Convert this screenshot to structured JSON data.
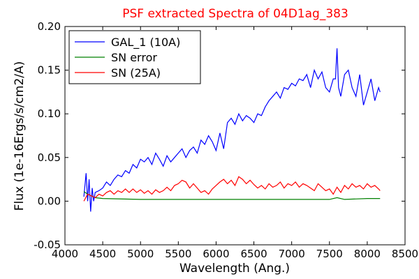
{
  "chart_data": {
    "type": "line",
    "title": "PSF extracted Spectra of 04D1ag_383",
    "title_color": "#ff0000",
    "xlabel": "Wavelength (Ang.)",
    "ylabel": "Flux (1e-16Ergs/s/cm2/A)",
    "xlim": [
      4000,
      8500
    ],
    "ylim": [
      -0.05,
      0.2
    ],
    "x_ticks": [
      4000,
      4500,
      5000,
      5500,
      6000,
      6500,
      7000,
      7500,
      8000,
      8500
    ],
    "x_tick_labels": [
      "4000",
      "4500",
      "5000",
      "5500",
      "6000",
      "6500",
      "7000",
      "7500",
      "8000",
      "8500"
    ],
    "y_ticks": [
      -0.05,
      0.0,
      0.05,
      0.1,
      0.15,
      0.2
    ],
    "y_tick_labels": [
      "-0.05",
      "0.00",
      "0.05",
      "0.10",
      "0.15",
      "0.20"
    ],
    "grid": false,
    "legend_position": "top-left",
    "series": [
      {
        "name": "GAL_1 (10A)",
        "color": "#0000ff",
        "x": [
          4250,
          4280,
          4300,
          4320,
          4340,
          4360,
          4380,
          4400,
          4450,
          4500,
          4550,
          4600,
          4650,
          4700,
          4750,
          4800,
          4850,
          4900,
          4950,
          5000,
          5050,
          5100,
          5150,
          5200,
          5250,
          5300,
          5350,
          5400,
          5450,
          5500,
          5550,
          5600,
          5650,
          5700,
          5750,
          5800,
          5850,
          5900,
          5950,
          6000,
          6050,
          6100,
          6150,
          6200,
          6250,
          6300,
          6350,
          6400,
          6450,
          6500,
          6550,
          6600,
          6650,
          6700,
          6750,
          6800,
          6850,
          6900,
          6950,
          7000,
          7050,
          7100,
          7150,
          7200,
          7250,
          7300,
          7350,
          7400,
          7450,
          7500,
          7550,
          7580,
          7600,
          7620,
          7650,
          7700,
          7750,
          7800,
          7850,
          7900,
          7950,
          8000,
          8050,
          8100,
          8150,
          8170
        ],
        "y": [
          0.005,
          0.032,
          0.0,
          0.025,
          -0.012,
          0.015,
          0.0,
          0.01,
          0.012,
          0.015,
          0.022,
          0.018,
          0.025,
          0.03,
          0.028,
          0.035,
          0.032,
          0.042,
          0.038,
          0.048,
          0.045,
          0.05,
          0.042,
          0.055,
          0.048,
          0.04,
          0.052,
          0.045,
          0.05,
          0.055,
          0.06,
          0.05,
          0.058,
          0.062,
          0.055,
          0.07,
          0.065,
          0.075,
          0.068,
          0.058,
          0.078,
          0.06,
          0.09,
          0.095,
          0.088,
          0.1,
          0.092,
          0.098,
          0.095,
          0.09,
          0.1,
          0.098,
          0.108,
          0.115,
          0.12,
          0.125,
          0.118,
          0.13,
          0.128,
          0.135,
          0.132,
          0.14,
          0.138,
          0.145,
          0.13,
          0.15,
          0.14,
          0.148,
          0.13,
          0.125,
          0.14,
          0.14,
          0.175,
          0.13,
          0.12,
          0.145,
          0.15,
          0.13,
          0.12,
          0.145,
          0.11,
          0.125,
          0.14,
          0.115,
          0.13,
          0.125
        ]
      },
      {
        "name": "SN error",
        "color": "#008000",
        "x": [
          4250,
          4300,
          4400,
          4500,
          5000,
          5500,
          6000,
          6500,
          7000,
          7500,
          7600,
          7700,
          8000,
          8170
        ],
        "y": [
          0.011,
          0.008,
          0.004,
          0.003,
          0.002,
          0.002,
          0.002,
          0.002,
          0.002,
          0.002,
          0.004,
          0.002,
          0.003,
          0.003
        ]
      },
      {
        "name": "SN (25A)",
        "color": "#ff0000",
        "x": [
          4250,
          4300,
          4350,
          4400,
          4450,
          4500,
          4550,
          4600,
          4650,
          4700,
          4750,
          4800,
          4850,
          4900,
          4950,
          5000,
          5050,
          5100,
          5150,
          5200,
          5250,
          5300,
          5350,
          5400,
          5450,
          5500,
          5550,
          5600,
          5650,
          5700,
          5750,
          5800,
          5850,
          5900,
          5950,
          6000,
          6050,
          6100,
          6150,
          6200,
          6250,
          6300,
          6350,
          6400,
          6450,
          6500,
          6550,
          6600,
          6650,
          6700,
          6750,
          6800,
          6850,
          6900,
          6950,
          7000,
          7050,
          7100,
          7150,
          7200,
          7250,
          7300,
          7350,
          7400,
          7450,
          7500,
          7550,
          7600,
          7650,
          7700,
          7750,
          7800,
          7850,
          7900,
          7950,
          8000,
          8050,
          8100,
          8150,
          8170
        ],
        "y": [
          0.0,
          0.008,
          0.006,
          0.004,
          0.008,
          0.006,
          0.01,
          0.012,
          0.008,
          0.012,
          0.01,
          0.014,
          0.01,
          0.014,
          0.01,
          0.013,
          0.009,
          0.012,
          0.008,
          0.013,
          0.01,
          0.012,
          0.016,
          0.012,
          0.018,
          0.02,
          0.024,
          0.022,
          0.015,
          0.02,
          0.015,
          0.01,
          0.012,
          0.008,
          0.014,
          0.018,
          0.022,
          0.025,
          0.02,
          0.024,
          0.018,
          0.028,
          0.025,
          0.02,
          0.024,
          0.019,
          0.015,
          0.018,
          0.014,
          0.02,
          0.016,
          0.018,
          0.022,
          0.015,
          0.02,
          0.018,
          0.022,
          0.016,
          0.02,
          0.018,
          0.015,
          0.012,
          0.02,
          0.016,
          0.012,
          0.014,
          0.008,
          0.016,
          0.01,
          0.018,
          0.014,
          0.02,
          0.016,
          0.018,
          0.014,
          0.02,
          0.016,
          0.018,
          0.014,
          0.012
        ]
      }
    ]
  }
}
